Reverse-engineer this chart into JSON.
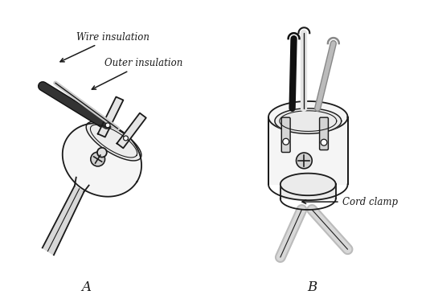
{
  "background_color": "#ffffff",
  "label_A": "A",
  "label_B": "B",
  "annotation_wire_insulation": "Wire insulation",
  "annotation_outer_insulation": "Outer insulation",
  "annotation_cord_clamp": "Cord clamp",
  "line_color": "#1a1a1a",
  "wire_black": "#111111",
  "wire_gray": "#888888",
  "wire_white": "#eeeeee",
  "plug_body_fill": "#f5f5f5",
  "plug_inner_fill": "#e8e8e8",
  "screw_fill": "#d0d0d0",
  "figsize": [
    5.35,
    3.82
  ],
  "dpi": 100
}
